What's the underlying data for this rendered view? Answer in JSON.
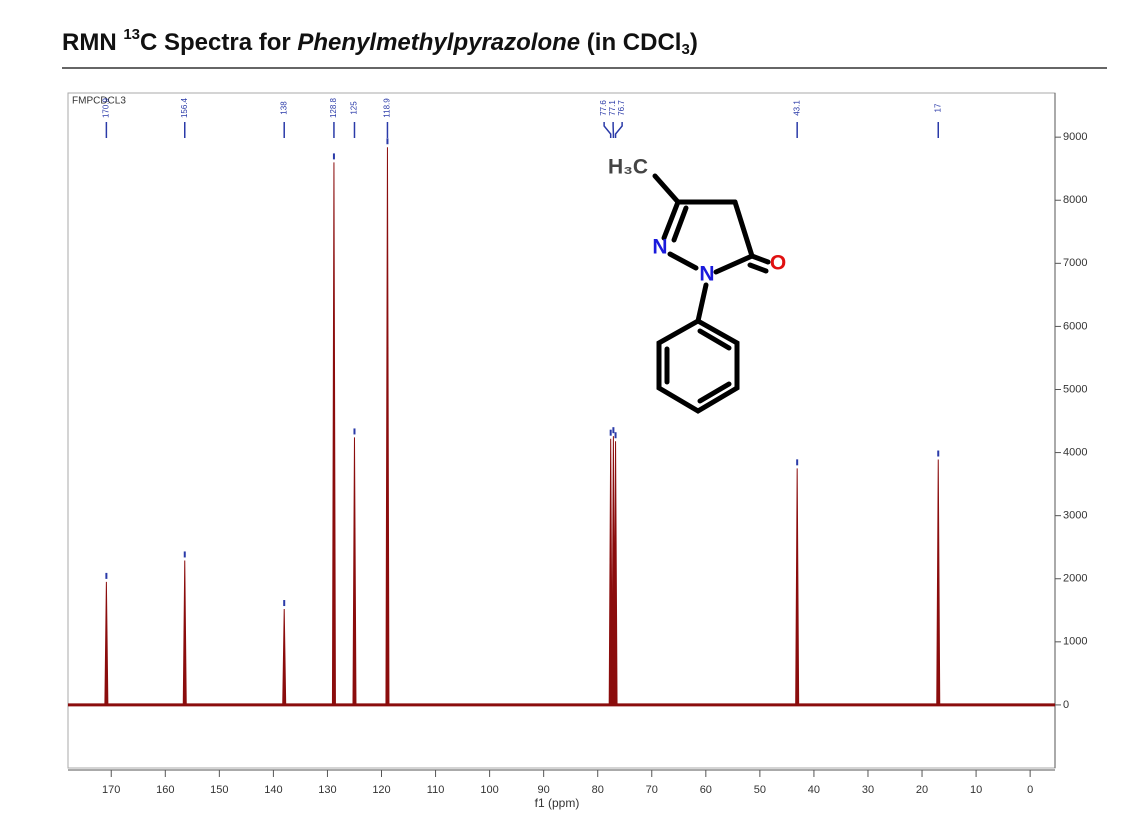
{
  "chart_data": {
    "type": "spectrum",
    "title_parts": [
      "RMN ",
      "13",
      "C  Spectra for ",
      "Phenylmethylpyrazolone",
      " (in CDCl",
      "3",
      ")"
    ],
    "dataset_name": "FMPCDCL3",
    "x_label": "f1 (ppm)",
    "x": [
      170.9,
      156.4,
      138.0,
      128.8,
      125.0,
      118.9,
      77.6,
      77.1,
      76.7,
      43.1,
      17.0
    ],
    "values": [
      1950,
      2290,
      1520,
      8600,
      4240,
      8840,
      4220,
      4260,
      4180,
      3750,
      3890
    ],
    "color": "#8b0d0d",
    "label_color": "#2a3aa8",
    "xlim": [
      178,
      -4.6
    ],
    "xticks": [
      170,
      160,
      150,
      140,
      130,
      120,
      110,
      100,
      90,
      80,
      70,
      60,
      50,
      40,
      30,
      20,
      10,
      0
    ],
    "ylim": [
      -1000,
      9700
    ],
    "yticks": [
      0,
      1000,
      2000,
      3000,
      4000,
      5000,
      6000,
      7000,
      8000,
      9000
    ],
    "structure_labels": [
      "H₃C",
      "N",
      "N",
      "O"
    ]
  }
}
